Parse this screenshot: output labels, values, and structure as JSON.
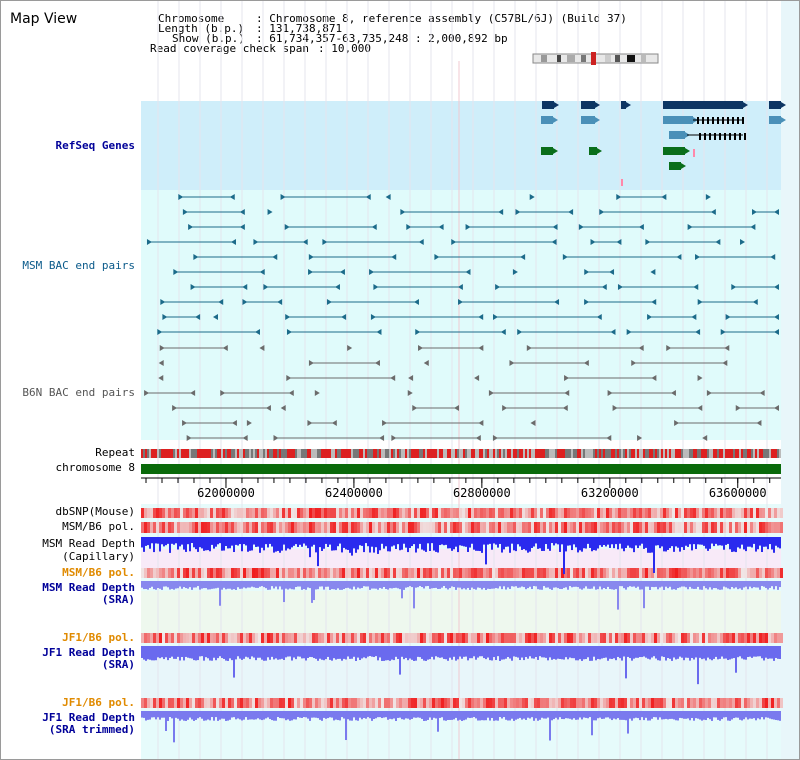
{
  "page": {
    "title": "Map View"
  },
  "info": {
    "chromosome_key": "Chromosome",
    "chromosome_val": ": Chromosome 8, reference assembly (C57BL/6J) (Build 37)",
    "length_key": "Length (b.p.)",
    "length_val": ": 131,738,871",
    "show_key": "Show (b.p.)",
    "show_val": ": 61,734,357-63,735,248 : 2,000,892 bp",
    "coverage_key": "Read coverage check span",
    "coverage_val": ": 10,000"
  },
  "tracks": {
    "refseq": "RefSeq Genes",
    "msm_bac": "MSM BAC end pairs",
    "b6n_bac": "B6N BAC end pairs",
    "repeat": "Repeat",
    "chromosome": "chromosome 8",
    "dbsnp": "dbSNP(Mouse)",
    "msm_b6_pol": "MSM/B6 pol.",
    "msm_depth_cap_1": "MSM Read Depth",
    "msm_depth_cap_2": "(Capillary)",
    "msm_b6_pol2": "MSM/B6 pol.",
    "msm_depth_sra_1": "MSM Read Depth",
    "msm_depth_sra_2": "(SRA)",
    "jf1_b6_pol": "JF1/B6 pol.",
    "jf1_depth_sra_1": "JF1 Read Depth",
    "jf1_depth_sra_2": "(SRA)",
    "jf1_b6_pol2": "JF1/B6 pol.",
    "jf1_depth_trim_1": "JF1 Read Depth",
    "jf1_depth_trim_2": "(SRA trimmed)"
  },
  "axis": {
    "ticks": [
      {
        "label": "62000000",
        "value": 62000000
      },
      {
        "label": "62400000",
        "value": 62400000
      },
      {
        "label": "62800000",
        "value": 62800000
      },
      {
        "label": "63200000",
        "value": 63200000
      },
      {
        "label": "63600000",
        "value": 63600000
      }
    ],
    "range_start": 61734357,
    "range_end": 63735248
  },
  "colors": {
    "refseq_bg": "#cfeefa",
    "bac_bg": "#e0fbfb",
    "gene_dark": "#0d3563",
    "gene_mid": "#4a90b8",
    "gene_green": "#0a6e1a",
    "msm_bac": "#1c6b8a",
    "b6n_bac": "#6b6b6b",
    "chromosome": "#0a6a0a",
    "pol_red": "#ee2020",
    "depth_blue": "#2020ee",
    "label_blue": "#000099",
    "label_orange": "#e08a00",
    "label_teal": "#0a5a8a"
  }
}
